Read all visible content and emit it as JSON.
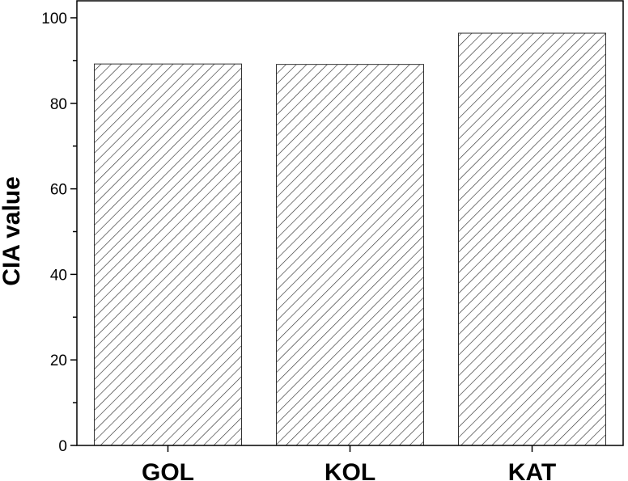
{
  "chart_data": {
    "type": "bar",
    "categories": [
      "GOL",
      "KOL",
      "KAT"
    ],
    "values": [
      89.2,
      89.1,
      96.4
    ],
    "title": "",
    "xlabel": "",
    "ylabel": "CIA value",
    "ylim": [
      0,
      100
    ],
    "yticks": [
      0,
      20,
      40,
      60,
      80,
      100
    ],
    "grid": false,
    "bar_fill": "diagonal-hatch",
    "bar_color": "#333333"
  }
}
